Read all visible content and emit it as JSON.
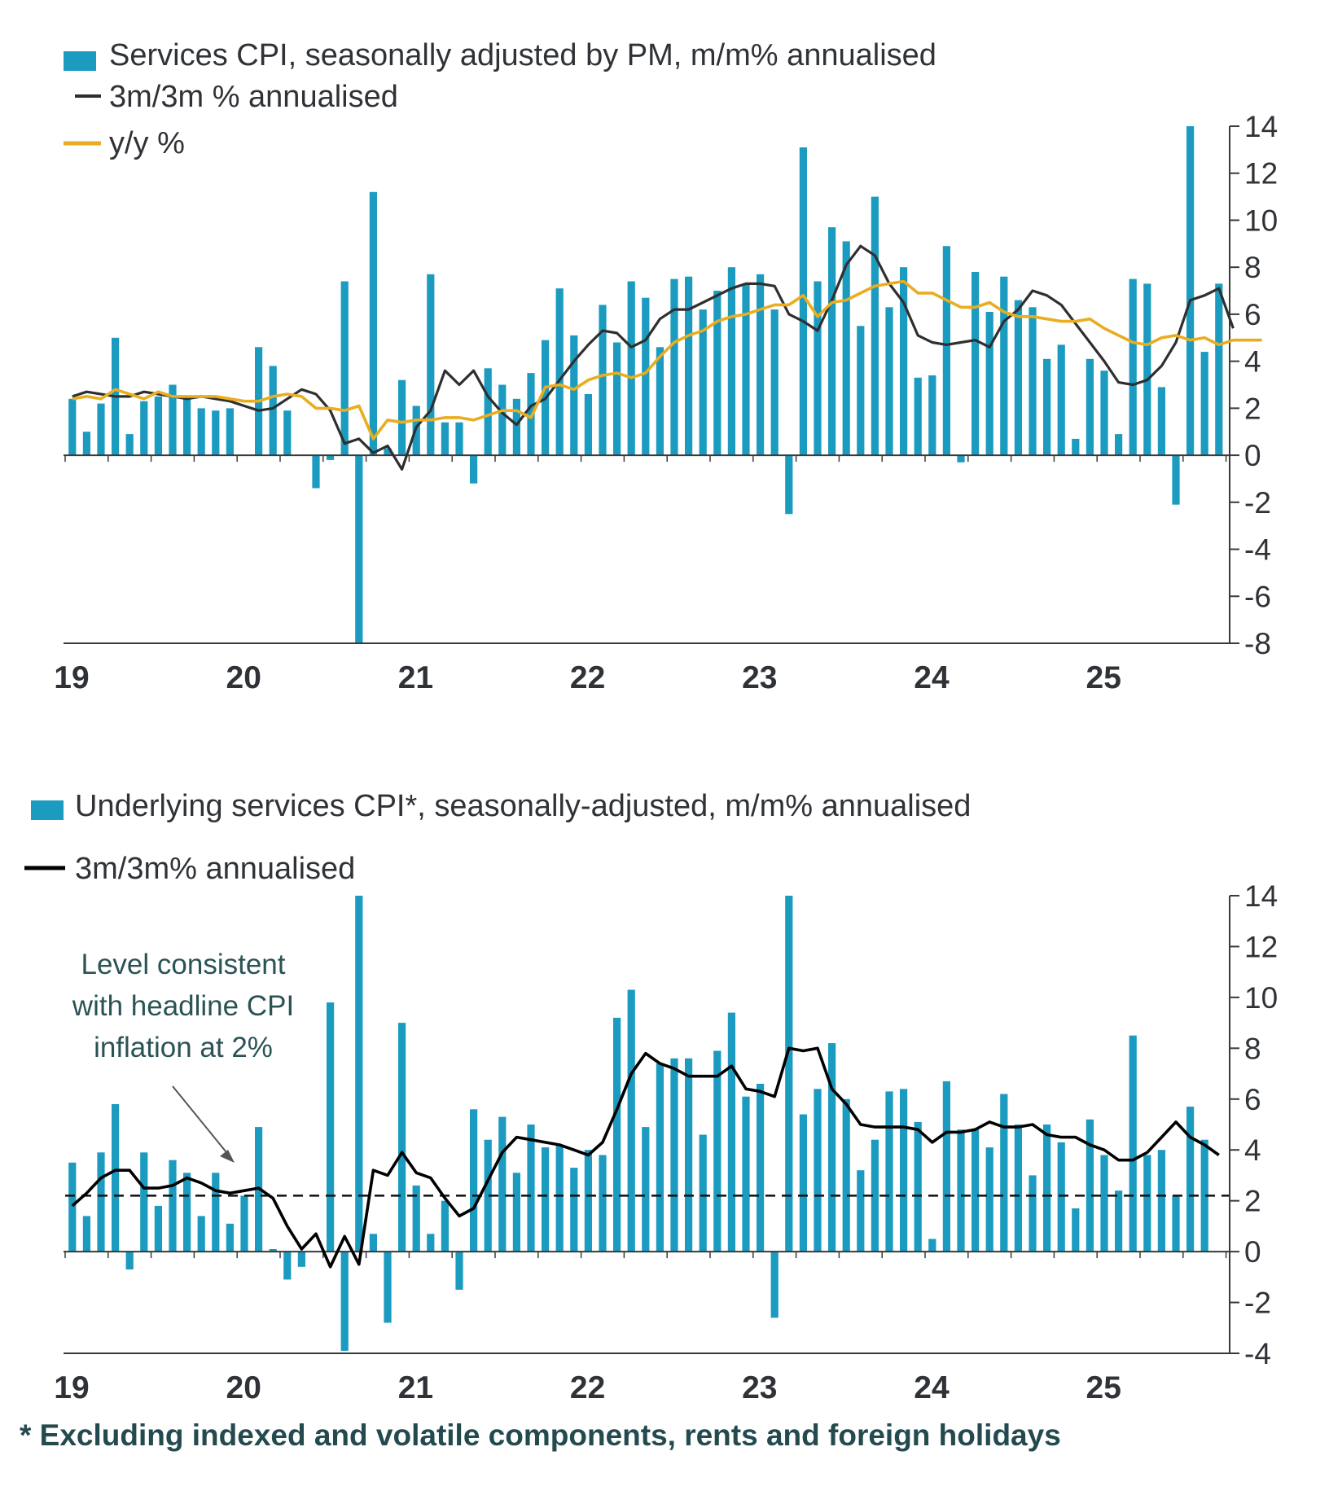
{
  "colors": {
    "bar": "#1b9bbf",
    "line_3m3m": "#2f2f2f",
    "line_3m3m_bottom": "#000000",
    "line_yy": "#e9ad1f",
    "axis": "#3a3a3a",
    "text": "#2f3236",
    "annotation": "#2b5356"
  },
  "footnote": "* Excluding indexed and volatile components, rents and foreign holidays",
  "chart_data": [
    {
      "type": "bar",
      "x_start": "2019-01",
      "x_tick_labels": [
        "19",
        "20",
        "21",
        "22",
        "23",
        "24",
        "25"
      ],
      "ylim": [
        -8,
        14
      ],
      "y_ticks": [
        14,
        12,
        10,
        8,
        6,
        4,
        2,
        0,
        -2,
        -4,
        -6,
        -8
      ],
      "grid": false,
      "legend_position": "top-left",
      "series": [
        {
          "name": "Services CPI, seasonally adjusted by PM, m/m% annualised",
          "type": "bar",
          "values": [
            2.4,
            1.0,
            2.2,
            5.0,
            0.9,
            2.3,
            2.5,
            3.0,
            2.5,
            2.0,
            1.9,
            2.0,
            0.0,
            4.6,
            3.8,
            1.9,
            0.0,
            -1.4,
            -0.2,
            7.4,
            -8.0,
            11.2,
            0.3,
            3.2,
            2.1,
            7.7,
            1.4,
            1.4,
            -1.2,
            3.7,
            3.0,
            2.4,
            3.5,
            4.9,
            7.1,
            5.1,
            2.6,
            6.4,
            4.8,
            7.4,
            6.7,
            4.6,
            7.5,
            7.6,
            6.2,
            7.0,
            8.0,
            7.3,
            7.7,
            6.2,
            -2.5,
            13.1,
            7.4,
            9.7,
            9.1,
            5.5,
            11.0,
            6.3,
            8.0,
            3.3,
            3.4,
            8.9,
            -0.3,
            7.8,
            6.1,
            7.6,
            6.6,
            6.3,
            4.1,
            4.7,
            0.7,
            4.1,
            3.6,
            0.9,
            7.5,
            7.3,
            2.9,
            -2.1,
            14.0,
            4.4,
            7.3
          ]
        },
        {
          "name": "3m/3m % annualised",
          "type": "line",
          "values": [
            2.5,
            2.7,
            2.6,
            2.5,
            2.5,
            2.7,
            2.6,
            2.5,
            2.4,
            2.5,
            2.4,
            2.3,
            2.1,
            1.9,
            2.0,
            2.4,
            2.8,
            2.6,
            1.9,
            0.5,
            0.7,
            0.1,
            0.4,
            -0.6,
            1.2,
            1.9,
            3.6,
            3.0,
            3.6,
            2.5,
            1.8,
            1.3,
            2.1,
            2.4,
            3.2,
            4.0,
            4.7,
            5.3,
            5.2,
            4.6,
            4.9,
            5.8,
            6.2,
            6.2,
            6.5,
            6.8,
            7.1,
            7.3,
            7.3,
            7.2,
            6.0,
            5.7,
            5.3,
            6.6,
            8.1,
            8.9,
            8.5,
            7.3,
            6.5,
            5.1,
            4.8,
            4.7,
            4.8,
            4.9,
            4.6,
            5.7,
            6.2,
            7.0,
            6.8,
            6.4,
            5.6,
            4.8,
            4.0,
            3.1,
            3.0,
            3.2,
            3.8,
            4.8,
            6.6,
            6.8,
            7.1,
            5.4
          ]
        },
        {
          "name": "y/y %",
          "type": "line",
          "values": [
            2.4,
            2.5,
            2.4,
            2.8,
            2.6,
            2.4,
            2.7,
            2.5,
            2.5,
            2.5,
            2.5,
            2.4,
            2.3,
            2.3,
            2.5,
            2.6,
            2.5,
            2.0,
            2.0,
            1.9,
            2.1,
            0.7,
            1.5,
            1.4,
            1.5,
            1.5,
            1.6,
            1.6,
            1.5,
            1.7,
            1.9,
            1.9,
            1.6,
            2.9,
            3.0,
            2.8,
            3.2,
            3.4,
            3.5,
            3.3,
            3.5,
            4.2,
            4.8,
            5.1,
            5.3,
            5.7,
            5.9,
            6.0,
            6.2,
            6.4,
            6.4,
            6.8,
            5.9,
            6.5,
            6.6,
            6.9,
            7.2,
            7.3,
            7.4,
            6.9,
            6.9,
            6.6,
            6.3,
            6.3,
            6.5,
            6.1,
            5.9,
            5.9,
            5.8,
            5.7,
            5.7,
            5.8,
            5.4,
            5.1,
            4.8,
            4.7,
            5.0,
            5.1,
            4.9,
            5.0,
            4.7,
            4.9,
            4.9,
            4.9
          ]
        }
      ]
    },
    {
      "type": "bar",
      "x_start": "2019-01",
      "x_tick_labels": [
        "19",
        "20",
        "21",
        "22",
        "23",
        "24",
        "25"
      ],
      "ylim": [
        -4,
        14
      ],
      "y_ticks": [
        14,
        12,
        10,
        8,
        6,
        4,
        2,
        0,
        -2,
        -4
      ],
      "grid": false,
      "legend_position": "top-left",
      "reference_line": {
        "value": 2.2,
        "style": "dashed"
      },
      "annotation": [
        "Level consistent",
        "with headline CPI",
        "inflation at 2%"
      ],
      "series": [
        {
          "name": "Underlying services CPI*, seasonally-adjusted, m/m% annualised",
          "type": "bar",
          "values": [
            3.5,
            1.4,
            3.9,
            5.8,
            -0.7,
            3.9,
            1.8,
            3.6,
            3.1,
            1.4,
            3.1,
            1.1,
            2.2,
            4.9,
            0.1,
            -1.1,
            -0.6,
            0.0,
            9.8,
            -3.9,
            14.0,
            0.7,
            -2.8,
            9.0,
            2.6,
            0.7,
            2.0,
            -1.5,
            5.6,
            4.4,
            5.3,
            3.1,
            5.0,
            4.1,
            4.2,
            3.3,
            4.0,
            3.8,
            9.2,
            10.3,
            4.9,
            7.4,
            7.6,
            7.6,
            4.6,
            7.9,
            9.4,
            6.1,
            6.6,
            -2.6,
            14.0,
            5.4,
            6.4,
            8.2,
            6.0,
            3.2,
            4.4,
            6.3,
            6.4,
            5.1,
            0.5,
            6.7,
            4.8,
            4.8,
            4.1,
            6.2,
            5.0,
            3.0,
            5.0,
            4.3,
            1.7,
            5.2,
            3.8,
            2.4,
            8.5,
            3.8,
            4.0,
            2.2,
            5.7,
            4.4
          ]
        },
        {
          "name": "3m/3m% annualised",
          "type": "line",
          "values": [
            1.8,
            2.3,
            2.9,
            3.2,
            3.2,
            2.5,
            2.5,
            2.6,
            2.9,
            2.7,
            2.4,
            2.3,
            2.4,
            2.5,
            2.1,
            1.0,
            0.1,
            0.7,
            -0.6,
            0.6,
            -0.5,
            3.2,
            3.0,
            3.9,
            3.1,
            2.9,
            2.1,
            1.4,
            1.7,
            2.8,
            3.9,
            4.5,
            4.4,
            4.3,
            4.2,
            4.0,
            3.8,
            4.3,
            5.6,
            7.0,
            7.8,
            7.4,
            7.2,
            6.9,
            6.9,
            6.9,
            7.3,
            6.4,
            6.3,
            6.1,
            8.0,
            7.9,
            8.0,
            6.4,
            5.8,
            5.0,
            4.9,
            4.9,
            4.9,
            4.8,
            4.3,
            4.7,
            4.7,
            4.8,
            5.1,
            4.9,
            4.9,
            5.0,
            4.6,
            4.5,
            4.5,
            4.2,
            4.0,
            3.6,
            3.6,
            3.9,
            4.5,
            5.1,
            4.5,
            4.2,
            3.8
          ]
        }
      ]
    }
  ]
}
